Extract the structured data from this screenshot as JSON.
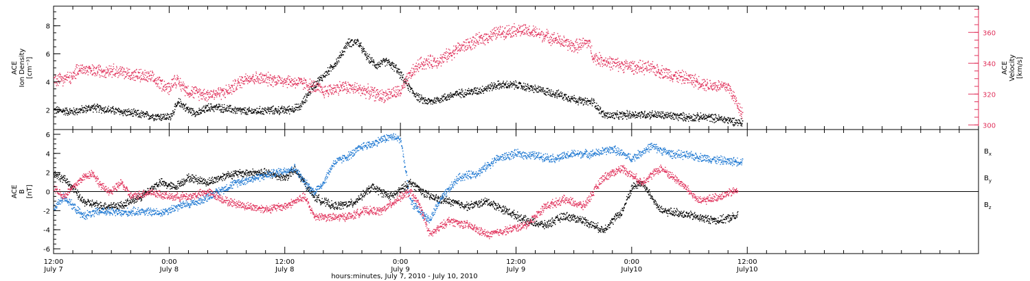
{
  "chart_data": {
    "type": "scatter",
    "xlabel": "hours:minutes, July  7, 2010 - July 10, 2010",
    "x_range_hours": [
      0,
      96
    ],
    "x_ticks": [
      {
        "hours": 0,
        "time": "12:00",
        "date": "July 7"
      },
      {
        "hours": 12,
        "time": "0:00",
        "date": "July 8"
      },
      {
        "hours": 24,
        "time": "12:00",
        "date": "July 8"
      },
      {
        "hours": 36,
        "time": "0:00",
        "date": "July 9"
      },
      {
        "hours": 48,
        "time": "12:00",
        "date": "July 9"
      },
      {
        "hours": 60,
        "time": "0:00",
        "date": "July10"
      },
      {
        "hours": 72,
        "time": "12:00",
        "date": "July10"
      }
    ],
    "panels": [
      {
        "ylabel_left": [
          "ACE",
          "Ion Density",
          "[cm⁻³]"
        ],
        "ylim_left": [
          0.6,
          9.4
        ],
        "yticks_left": [
          2,
          4,
          6,
          8
        ],
        "ylabel_right": [
          "ACE",
          "Velocity",
          "[km/s]"
        ],
        "ylim_right": [
          297,
          377
        ],
        "yticks_right": [
          300,
          320,
          340,
          360
        ],
        "series": [
          {
            "color": "#000000",
            "axis": "left",
            "points": [
              [
                0,
                2.0
              ],
              [
                2,
                1.9
              ],
              [
                4,
                2.2
              ],
              [
                6,
                2.0
              ],
              [
                8,
                1.8
              ],
              [
                10,
                1.6
              ],
              [
                12,
                1.5
              ],
              [
                13,
                2.6
              ],
              [
                14,
                2.0
              ],
              [
                15,
                1.8
              ],
              [
                16,
                2.2
              ],
              [
                17,
                2.2
              ],
              [
                18,
                2.1
              ],
              [
                20,
                1.9
              ],
              [
                22,
                2.0
              ],
              [
                24,
                2.0
              ],
              [
                25.5,
                2.2
              ],
              [
                27,
                3.8
              ],
              [
                28.5,
                4.8
              ],
              [
                29.5,
                5.6
              ],
              [
                30.5,
                6.8
              ],
              [
                31.5,
                6.9
              ],
              [
                32.5,
                5.8
              ],
              [
                33.5,
                5.2
              ],
              [
                34.5,
                5.5
              ],
              [
                35.5,
                5.0
              ],
              [
                36,
                4.5
              ],
              [
                37,
                3.5
              ],
              [
                38,
                2.8
              ],
              [
                39,
                2.6
              ],
              [
                40,
                2.8
              ],
              [
                42,
                3.2
              ],
              [
                44,
                3.4
              ],
              [
                46,
                3.8
              ],
              [
                48,
                3.8
              ],
              [
                50,
                3.5
              ],
              [
                52,
                3.2
              ],
              [
                54,
                2.8
              ],
              [
                55,
                2.6
              ],
              [
                56,
                2.6
              ],
              [
                57,
                1.7
              ],
              [
                58,
                1.6
              ],
              [
                60,
                1.7
              ],
              [
                62,
                1.7
              ],
              [
                64,
                1.6
              ],
              [
                66,
                1.5
              ],
              [
                68,
                1.5
              ],
              [
                70,
                1.3
              ],
              [
                71.5,
                1.1
              ]
            ]
          },
          {
            "color": "#e0305a",
            "axis": "right",
            "points": [
              [
                0,
                330
              ],
              [
                2,
                331
              ],
              [
                2.5,
                337
              ],
              [
                4,
                335
              ],
              [
                6,
                336
              ],
              [
                8,
                333
              ],
              [
                10,
                331
              ],
              [
                12,
                324
              ],
              [
                12.5,
                330
              ],
              [
                14,
                322
              ],
              [
                16,
                320
              ],
              [
                18,
                322
              ],
              [
                20,
                331
              ],
              [
                22,
                330
              ],
              [
                24,
                329
              ],
              [
                26,
                327
              ],
              [
                27,
                325
              ],
              [
                28,
                322
              ],
              [
                30,
                325
              ],
              [
                32,
                323
              ],
              [
                34,
                319
              ],
              [
                36,
                322
              ],
              [
                37,
                333
              ],
              [
                38,
                340
              ],
              [
                40,
                342
              ],
              [
                42,
                350
              ],
              [
                44,
                355
              ],
              [
                46,
                360
              ],
              [
                48,
                362
              ],
              [
                50,
                360
              ],
              [
                52,
                356
              ],
              [
                54,
                351
              ],
              [
                55.5,
                354
              ],
              [
                56,
                344
              ],
              [
                58,
                340
              ],
              [
                60,
                338
              ],
              [
                62,
                337
              ],
              [
                64,
                333
              ],
              [
                66,
                330
              ],
              [
                68,
                326
              ],
              [
                70,
                325
              ],
              [
                71.5,
                307
              ]
            ]
          }
        ]
      },
      {
        "ylabel_left": [
          "ACE",
          "B",
          "[nT]"
        ],
        "ylim_left": [
          -6.5,
          6.5
        ],
        "yticks_left": [
          -6,
          -4,
          -2,
          0,
          2,
          4,
          6
        ],
        "zero_line": true,
        "legend": [
          {
            "name": "B",
            "sub": "x",
            "color": "#000000"
          },
          {
            "name": "B",
            "sub": "y",
            "color": "#1e78d2"
          },
          {
            "name": "B",
            "sub": "z",
            "color": "#e0305a"
          }
        ],
        "series": [
          {
            "color": "#000000",
            "points": [
              [
                0,
                2.0
              ],
              [
                1.5,
                1.0
              ],
              [
                3,
                -1.0
              ],
              [
                5,
                -1.5
              ],
              [
                7,
                -1.4
              ],
              [
                9,
                -0.5
              ],
              [
                11,
                1.0
              ],
              [
                12.5,
                0.5
              ],
              [
                14,
                1.5
              ],
              [
                16,
                1.0
              ],
              [
                18,
                1.8
              ],
              [
                20,
                2.0
              ],
              [
                22,
                2.0
              ],
              [
                24,
                1.5
              ],
              [
                25,
                2.3
              ],
              [
                26,
                1.0
              ],
              [
                27,
                -0.5
              ],
              [
                29,
                -1.5
              ],
              [
                31,
                -1.2
              ],
              [
                33,
                0.5
              ],
              [
                35,
                -0.5
              ],
              [
                37,
                1.0
              ],
              [
                39,
                -0.5
              ],
              [
                41,
                -1.0
              ],
              [
                43,
                -1.5
              ],
              [
                45,
                -1.0
              ],
              [
                47,
                -2.0
              ],
              [
                49,
                -3.0
              ],
              [
                51,
                -3.5
              ],
              [
                53,
                -2.5
              ],
              [
                55,
                -3.0
              ],
              [
                57,
                -4.0
              ],
              [
                59,
                -2.0
              ],
              [
                60,
                0.5
              ],
              [
                61,
                1.0
              ],
              [
                63,
                -2.0
              ],
              [
                65,
                -2.2
              ],
              [
                67,
                -2.7
              ],
              [
                69,
                -3.0
              ],
              [
                71,
                -2.5
              ]
            ]
          },
          {
            "color": "#1e78d2",
            "points": [
              [
                0,
                -1.8
              ],
              [
                1,
                -0.5
              ],
              [
                2,
                -1.5
              ],
              [
                3,
                -2.5
              ],
              [
                5,
                -2.0
              ],
              [
                7,
                -2.2
              ],
              [
                9,
                -2.0
              ],
              [
                11,
                -2.2
              ],
              [
                13,
                -1.5
              ],
              [
                15,
                -1.0
              ],
              [
                17,
                0.0
              ],
              [
                19,
                1.0
              ],
              [
                21,
                1.5
              ],
              [
                23,
                2.0
              ],
              [
                25,
                2.5
              ],
              [
                26,
                1.0
              ],
              [
                27,
                0.0
              ],
              [
                28,
                1.0
              ],
              [
                29,
                3.0
              ],
              [
                31,
                4.0
              ],
              [
                32,
                4.8
              ],
              [
                33,
                5.0
              ],
              [
                34,
                5.5
              ],
              [
                35,
                5.8
              ],
              [
                36,
                5.5
              ],
              [
                37,
                -1.0
              ],
              [
                38,
                -2.0
              ],
              [
                39,
                -3.0
              ],
              [
                40,
                -1.0
              ],
              [
                42,
                1.5
              ],
              [
                44,
                2.0
              ],
              [
                46,
                3.5
              ],
              [
                48,
                4.0
              ],
              [
                50,
                3.8
              ],
              [
                52,
                3.5
              ],
              [
                54,
                4.0
              ],
              [
                56,
                4.0
              ],
              [
                58,
                4.5
              ],
              [
                60,
                3.5
              ],
              [
                62,
                4.8
              ],
              [
                64,
                4.0
              ],
              [
                66,
                3.8
              ],
              [
                68,
                3.5
              ],
              [
                70,
                3.2
              ],
              [
                71.5,
                3.2
              ]
            ]
          },
          {
            "color": "#e0305a",
            "points": [
              [
                0,
                0.5
              ],
              [
                1,
                -0.5
              ],
              [
                2,
                0.5
              ],
              [
                3,
                1.5
              ],
              [
                4,
                2.0
              ],
              [
                5,
                0.5
              ],
              [
                6,
                0.0
              ],
              [
                7,
                1.0
              ],
              [
                8,
                -0.5
              ],
              [
                10,
                0.0
              ],
              [
                12,
                -0.5
              ],
              [
                14,
                -0.5
              ],
              [
                16,
                0.0
              ],
              [
                18,
                -1.0
              ],
              [
                20,
                -1.5
              ],
              [
                22,
                -1.8
              ],
              [
                24,
                -1.5
              ],
              [
                26,
                -0.5
              ],
              [
                27,
                -2.5
              ],
              [
                29,
                -2.7
              ],
              [
                31,
                -2.5
              ],
              [
                32,
                -2.0
              ],
              [
                34,
                -2.0
              ],
              [
                36,
                -0.5
              ],
              [
                37,
                0.0
              ],
              [
                38,
                -1.5
              ],
              [
                39,
                -4.5
              ],
              [
                41,
                -3.0
              ],
              [
                43,
                -3.5
              ],
              [
                45,
                -4.5
              ],
              [
                47,
                -4.0
              ],
              [
                49,
                -3.5
              ],
              [
                51,
                -1.5
              ],
              [
                53,
                -0.8
              ],
              [
                55,
                -1.5
              ],
              [
                57,
                1.5
              ],
              [
                59,
                2.5
              ],
              [
                61,
                1.0
              ],
              [
                63,
                2.5
              ],
              [
                65,
                1.0
              ],
              [
                67,
                -1.0
              ],
              [
                69,
                -0.5
              ],
              [
                71,
                0.2
              ]
            ]
          }
        ]
      }
    ]
  }
}
